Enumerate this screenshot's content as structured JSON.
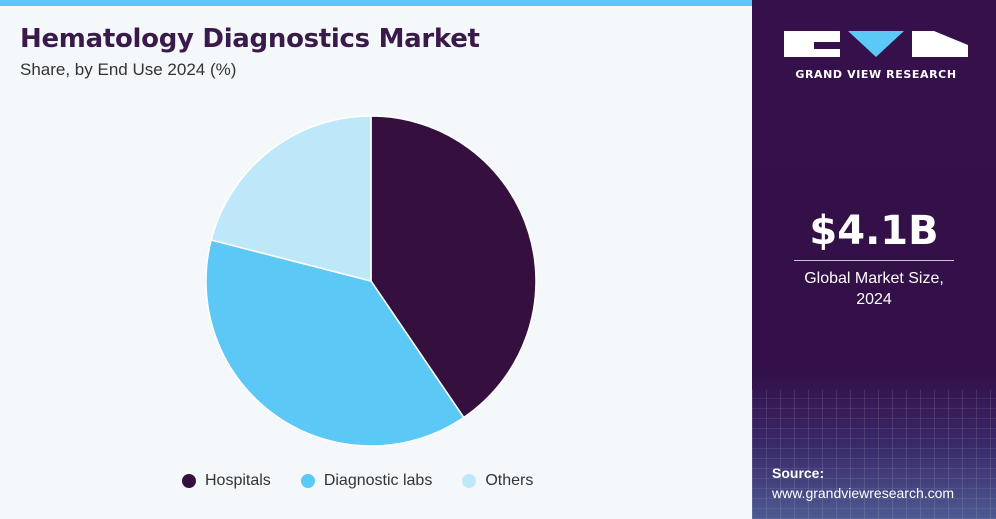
{
  "header": {
    "title": "Hematology Diagnostics Market",
    "subtitle": "Share, by End Use 2024 (%)"
  },
  "chart_data": {
    "type": "pie",
    "title": "Hematology Diagnostics Market",
    "subtitle": "Share, by End Use 2024 (%)",
    "categories": [
      "Hospitals",
      "Diagnostic labs",
      "Others"
    ],
    "values": [
      40.5,
      38.5,
      21.0
    ],
    "colors": [
      "#35103f",
      "#5bc8f5",
      "#bde8f9"
    ],
    "start_angle_deg": 0,
    "direction": "clockwise",
    "legend_position": "bottom"
  },
  "sidebar": {
    "brand": "GRAND VIEW RESEARCH",
    "market_size_value": "$4.1B",
    "market_size_label_line1": "Global Market Size,",
    "market_size_label_line2": "2024",
    "source_label": "Source:",
    "source_url": "www.grandviewresearch.com"
  }
}
